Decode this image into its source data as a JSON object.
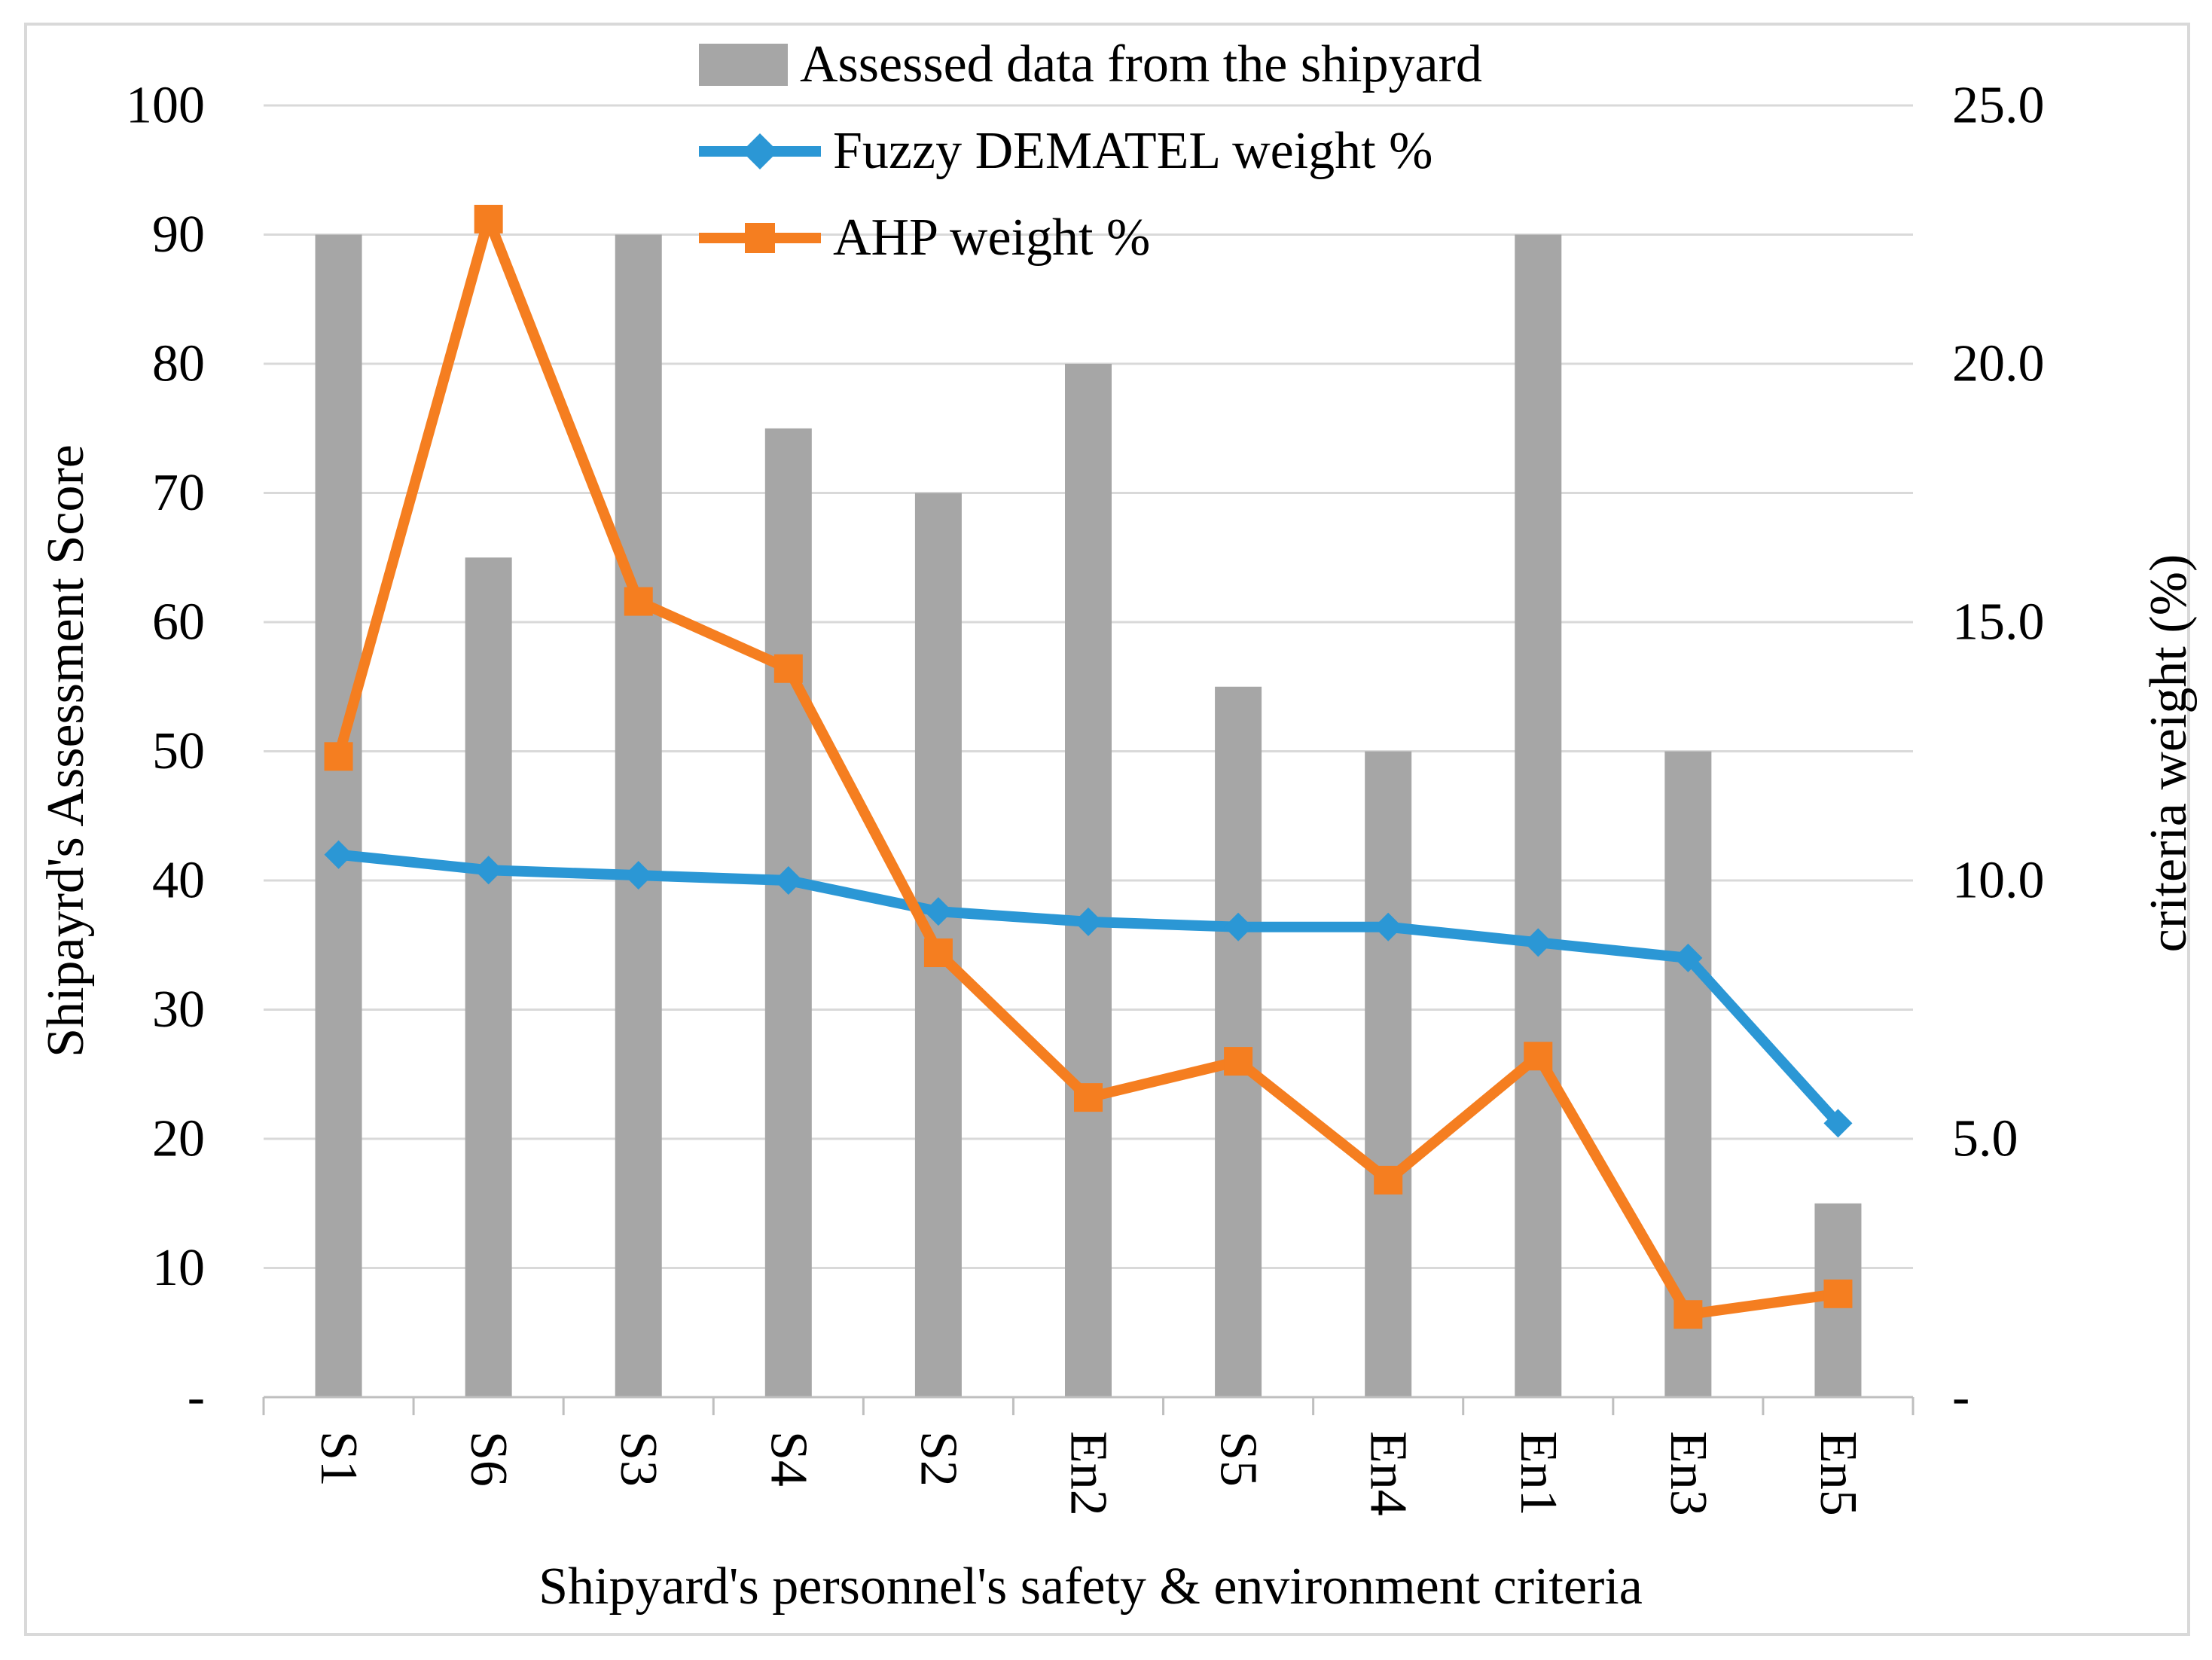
{
  "figure": {
    "legend": [
      {
        "label": "Assessed data from the shipyard",
        "swatch": "gray-bar"
      },
      {
        "label": "Fuzzy DEMATEL weight %",
        "swatch": "blue-line-diamond"
      },
      {
        "label": "AHP weight %",
        "swatch": "orange-line-square"
      }
    ],
    "y_axis_left": {
      "title": "Shipayrd's Assessment Score",
      "tick_labels": [
        "100",
        "90",
        "80",
        "70",
        "60",
        "50",
        "40",
        "30",
        "20",
        "10",
        "-"
      ]
    },
    "y_axis_right": {
      "title": "criteria weight (%)",
      "tick_labels": [
        "25.0",
        "20.0",
        "15.0",
        "10.0",
        "5.0",
        "-"
      ]
    },
    "x_axis": {
      "title": "Shipyard's personnel's safety & environment criteria"
    },
    "colors": {
      "bar": "#A6A6A6",
      "dematel_line": "#2B97D5",
      "ahp_line": "#F57E20",
      "gridline": "#D9D9D9",
      "axis_line": "#BFBFBF",
      "text": "#000000",
      "frame": "#D9D9D9"
    }
  },
  "chart_data": {
    "type": "bar+line",
    "categories": [
      "S1",
      "S6",
      "S3",
      "S4",
      "S2",
      "En2",
      "S5",
      "En4",
      "En1",
      "En3",
      "En5"
    ],
    "series": [
      {
        "name": "Assessed data from the shipyard",
        "type": "bar",
        "axis": "left",
        "marker": "none",
        "values": [
          90,
          65,
          90,
          75,
          70,
          80,
          55,
          50,
          90,
          50,
          15
        ]
      },
      {
        "name": "Fuzzy DEMATEL weight %",
        "type": "line",
        "axis": "right",
        "marker": "diamond",
        "values": [
          10.5,
          10.2,
          10.1,
          10.0,
          9.4,
          9.2,
          9.1,
          9.1,
          8.8,
          8.5,
          5.3
        ]
      },
      {
        "name": "AHP weight %",
        "type": "line",
        "axis": "right",
        "marker": "square",
        "values": [
          12.4,
          22.8,
          15.4,
          14.1,
          8.6,
          5.8,
          6.5,
          4.2,
          6.6,
          1.6,
          2.0
        ]
      }
    ],
    "title": "",
    "xlabel": "Shipyard's personnel's safety & environment criteria",
    "ylabel_left": "Shipayrd's Assessment Score",
    "ylabel_right": "criteria weight (%)",
    "ylim_left": [
      0,
      100
    ],
    "ylim_right": [
      0,
      25
    ],
    "gridlines": "horizontal every 10 (left axis)",
    "legend_position": "top-center"
  }
}
